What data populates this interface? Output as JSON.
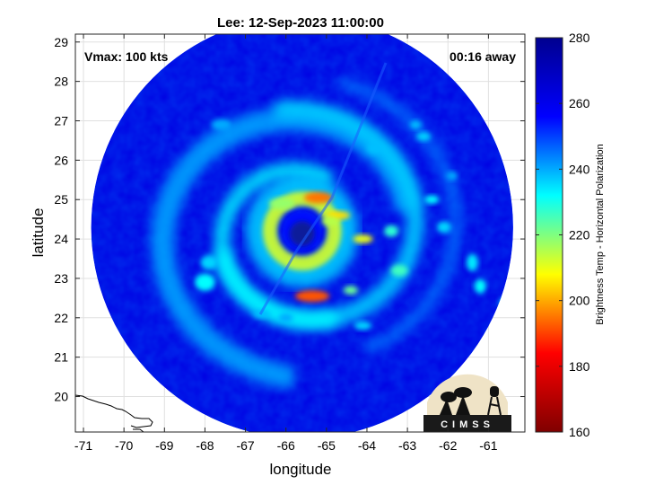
{
  "chart_data": {
    "type": "heatmap",
    "title": "Lee: 12-Sep-2023 11:00:00",
    "xlabel": "longitude",
    "ylabel": "latitude",
    "xlim": [
      -71.2,
      -60.1
    ],
    "ylim": [
      19.1,
      29.2
    ],
    "xticks": [
      -71,
      -70,
      -69,
      -68,
      -67,
      -66,
      -65,
      -64,
      -63,
      -62,
      -61
    ],
    "yticks": [
      20,
      21,
      22,
      23,
      24,
      25,
      26,
      27,
      28,
      29
    ],
    "grid": true,
    "annotations": {
      "left": "Vmax: 100 kts",
      "right": "00:16 away"
    },
    "colorbar": {
      "label": "Brightness Temp - Horizontal Polarization",
      "range": [
        160,
        280
      ],
      "ticks": [
        160,
        180,
        200,
        220,
        240,
        260,
        280
      ],
      "colormap": "jet",
      "stops": [
        "#800000",
        "#ff0000",
        "#ffff00",
        "#00ffff",
        "#0000ff",
        "#00008f"
      ]
    },
    "storm": {
      "center_lon": -65.6,
      "center_lat": 24.2,
      "swath_center_lon": -65.6,
      "swath_center_lat": 24.3,
      "swath_radius_deg": 5.4,
      "background_temp": 262,
      "eye_temp": 255,
      "eyewall_temp": 212
    },
    "logo": "CIMSS"
  }
}
